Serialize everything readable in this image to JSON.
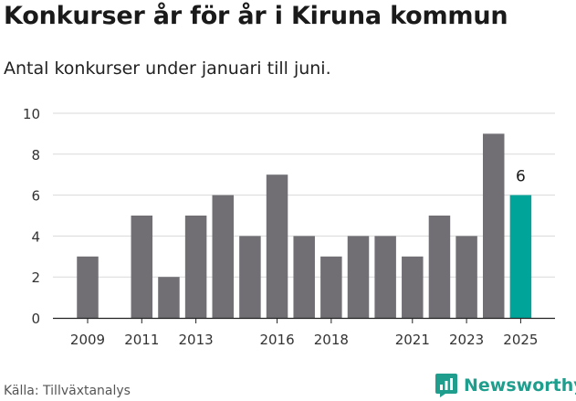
{
  "header": {
    "title": "Konkurser år för år i Kiruna kommun",
    "subtitle": "Antal konkurser under januari till juni."
  },
  "footer": {
    "source": "Källa: Tillväxtanalys",
    "brand": "Newsworthy",
    "brand_icon": "bar-chart-speech-bubble-icon"
  },
  "colors": {
    "bar": "#716f74",
    "highlight": "#00a499",
    "grid": "#d9d9d9",
    "brand": "#1f9e8d"
  },
  "chart_data": {
    "type": "bar",
    "title": "Konkurser år för år i Kiruna kommun",
    "subtitle": "Antal konkurser under januari till juni.",
    "categories": [
      2009,
      2010,
      2011,
      2012,
      2013,
      2014,
      2015,
      2016,
      2017,
      2018,
      2019,
      2020,
      2021,
      2022,
      2023,
      2024,
      2025
    ],
    "values": [
      3,
      0,
      5,
      2,
      5,
      6,
      4,
      7,
      4,
      3,
      4,
      4,
      3,
      5,
      4,
      9,
      6
    ],
    "x_tick_labels": [
      "2009",
      "2011",
      "2013",
      "2016",
      "2018",
      "2021",
      "2023",
      "2025"
    ],
    "y_ticks": [
      0,
      2,
      4,
      6,
      8,
      10
    ],
    "ylim": [
      0,
      10
    ],
    "highlight_category": 2025,
    "data_labels": [
      {
        "category": 2025,
        "text": "6"
      }
    ],
    "xlabel": "",
    "ylabel": "",
    "grid": true,
    "legend": "none"
  }
}
